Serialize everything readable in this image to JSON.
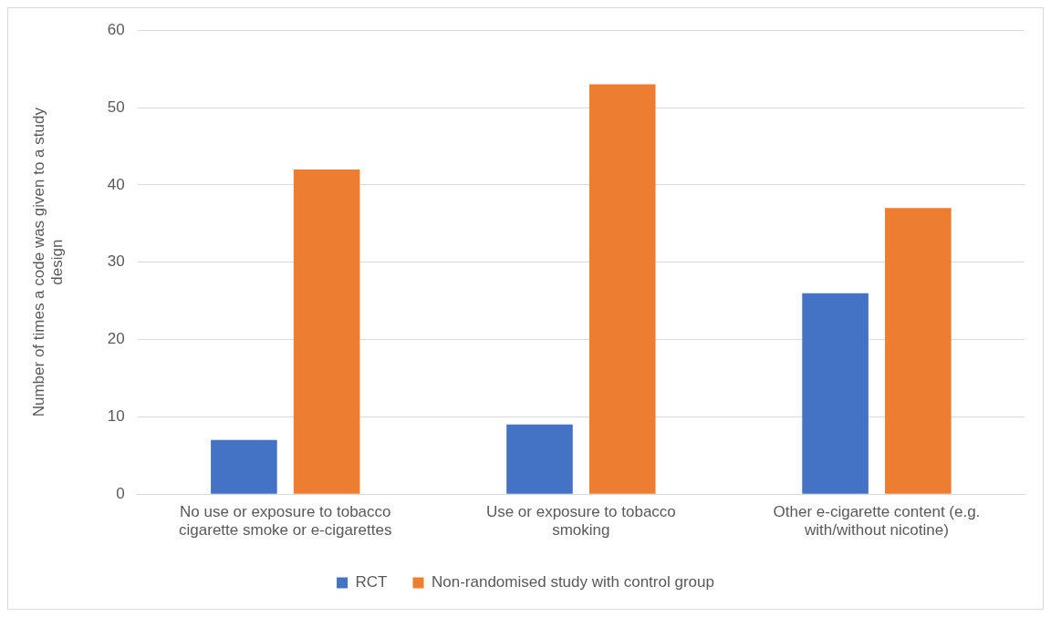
{
  "chart_data": {
    "type": "bar",
    "ylabel": "Number of times a code was given to a study design",
    "categories": [
      "No use or exposure to tobacco cigarette smoke or e-cigarettes",
      "Use or exposure to tobacco smoking",
      "Other e-cigarette content (e.g. with/without nicotine)"
    ],
    "series": [
      {
        "name": "RCT",
        "color": "#4472c4",
        "values": [
          7,
          9,
          26
        ]
      },
      {
        "name": "Non-randomised study with control group",
        "color": "#ed7d31",
        "values": [
          42,
          53,
          37
        ]
      }
    ],
    "ylim": [
      0,
      60
    ],
    "yticks": [
      0,
      10,
      20,
      30,
      40,
      50,
      60
    ],
    "grid": "y",
    "legend": "bottom"
  }
}
